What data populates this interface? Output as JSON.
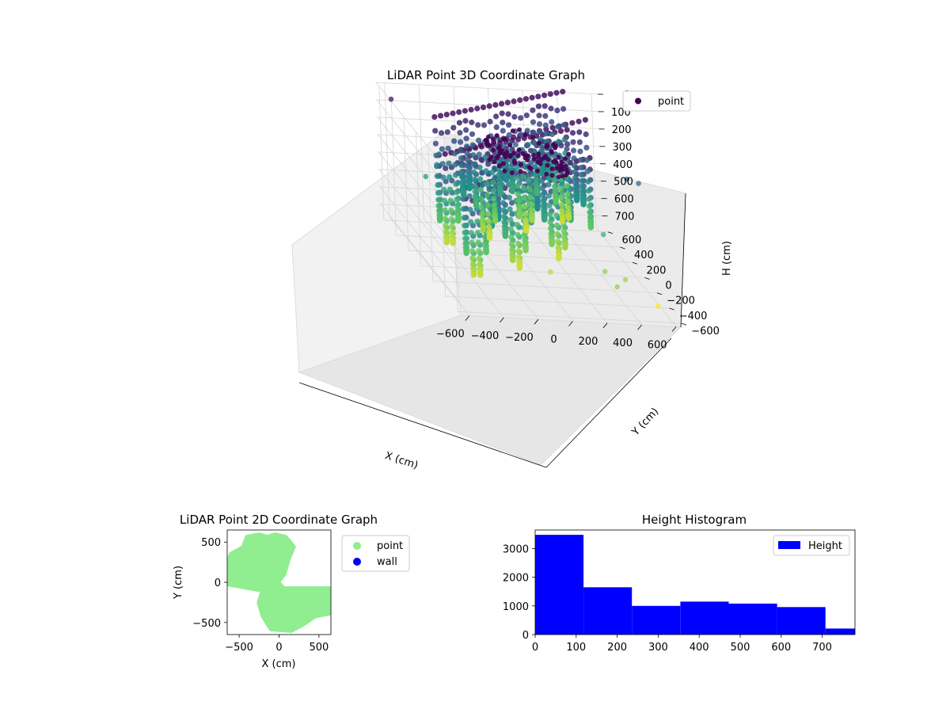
{
  "chart_data": [
    {
      "type": "scatter3d",
      "title": "LiDAR Point 3D Coordinate Graph",
      "xlabel": "X (cm)",
      "ylabel": "Y (cm)",
      "zlabel": "H (cm)",
      "xlim": [
        -650,
        650
      ],
      "ylim": [
        -650,
        650
      ],
      "zlim": [
        770,
        0
      ],
      "zaxis_inverted": true,
      "x_ticks": [
        -600,
        -400,
        -200,
        0,
        200,
        400,
        600
      ],
      "y_ticks": [
        -600,
        -400,
        -200,
        0,
        200,
        400,
        600
      ],
      "z_ticks": [
        0,
        100,
        200,
        300,
        400,
        500,
        600,
        700
      ],
      "colormap": "viridis",
      "grid": true,
      "legend": {
        "position": "top-right",
        "entries": [
          {
            "label": "point",
            "color": "#440154"
          }
        ]
      },
      "surface_description": "two bowl-shaped bands of arcs (one in negative-Y, one in positive-Y), height increasing toward center; colour encodes height",
      "outlier_points": [
        {
          "x": -600,
          "y": 550,
          "h": 50
        },
        {
          "x": -500,
          "y": 300,
          "h": 380
        },
        {
          "x": -350,
          "y": 500,
          "h": 330
        },
        {
          "x": -400,
          "y": 400,
          "h": 350
        },
        {
          "x": 0,
          "y": -300,
          "h": 640
        },
        {
          "x": 300,
          "y": -350,
          "h": 600
        },
        {
          "x": 400,
          "y": -400,
          "h": 620
        },
        {
          "x": 350,
          "y": -200,
          "h": 450
        },
        {
          "x": 550,
          "y": -500,
          "h": 720
        },
        {
          "x": 300,
          "y": -550,
          "h": 600
        },
        {
          "x": 600,
          "y": 100,
          "h": 250
        },
        {
          "x": 650,
          "y": 50,
          "h": 250
        }
      ]
    },
    {
      "type": "scatter",
      "title": "LiDAR Point 2D Coordinate Graph",
      "xlabel": "X (cm)",
      "ylabel": "Y (cm)",
      "xlim": [
        -650,
        650
      ],
      "ylim": [
        -650,
        650
      ],
      "x_ticks": [
        -500,
        0,
        500
      ],
      "y_ticks": [
        -500,
        0,
        500
      ],
      "legend": {
        "position": "outside-right",
        "entries": [
          {
            "label": "point",
            "color": "#90ee90"
          },
          {
            "label": "wall",
            "color": "#0000ff"
          }
        ]
      }
    },
    {
      "type": "bar",
      "title": "Height Histogram",
      "bin_edges": [
        0,
        118,
        236,
        354,
        472,
        590,
        708,
        826
      ],
      "values": [
        3480,
        1650,
        1000,
        1150,
        1080,
        960,
        210
      ],
      "xlim": [
        0,
        780
      ],
      "ylim": [
        0,
        3650
      ],
      "x_ticks": [
        0,
        100,
        200,
        300,
        400,
        500,
        600,
        700
      ],
      "y_ticks": [
        0,
        1000,
        2000,
        3000
      ],
      "color": "#0000ff",
      "legend": {
        "position": "top-right",
        "entries": [
          {
            "label": "Height",
            "color": "#0000ff"
          }
        ]
      }
    }
  ]
}
